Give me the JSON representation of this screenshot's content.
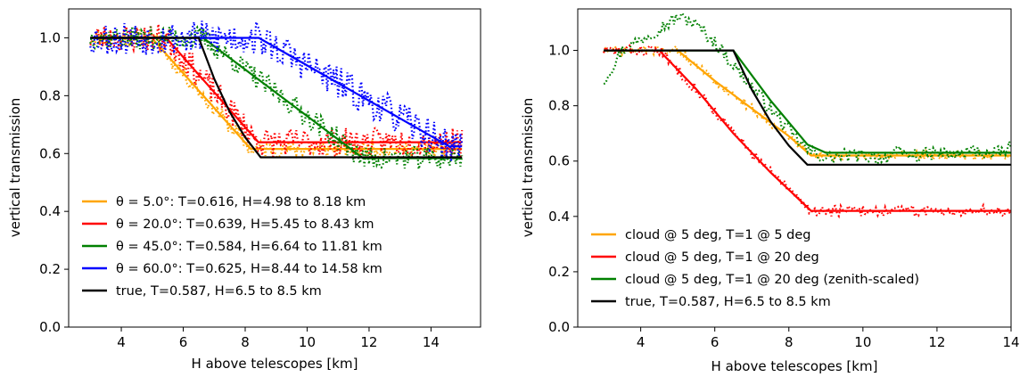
{
  "chart_data": [
    {
      "type": "line",
      "xlabel": "H above telescopes [km]",
      "ylabel": "vertical transmission",
      "xlim": [
        2.3,
        15.6
      ],
      "ylim": [
        0.0,
        1.1
      ],
      "xticks": [
        4,
        6,
        8,
        10,
        12,
        14
      ],
      "yticks": [
        0.0,
        0.2,
        0.4,
        0.6,
        0.8,
        1.0
      ],
      "xtick_labels": [
        "4",
        "6",
        "8",
        "10",
        "12",
        "14"
      ],
      "ytick_labels": [
        "0.0",
        "0.2",
        "0.4",
        "0.6",
        "0.8",
        "1.0"
      ],
      "legend_position": "lower-left",
      "series": [
        {
          "name": "θ = 5.0°: T=0.616, H=4.98 to 8.18 km",
          "color": "#ffa500",
          "fit": {
            "x": [
              3,
              4.98,
              8.18,
              15
            ],
            "y": [
              1.0,
              1.0,
              0.616,
              0.616
            ]
          },
          "noise": 0.015,
          "noise_seed": 11
        },
        {
          "name": "θ = 20.0°: T=0.639, H=5.45 to 8.43 km",
          "color": "#ff0000",
          "fit": {
            "x": [
              3,
              5.45,
              8.43,
              15
            ],
            "y": [
              1.0,
              1.0,
              0.639,
              0.639
            ]
          },
          "noise": 0.025,
          "noise_seed": 23
        },
        {
          "name": "θ = 45.0°: T=0.584, H=6.64 to 11.81 km",
          "color": "#008000",
          "fit": {
            "x": [
              3,
              6.64,
              11.81,
              15
            ],
            "y": [
              1.0,
              1.0,
              0.584,
              0.584
            ]
          },
          "noise": 0.02,
          "noise_seed": 37
        },
        {
          "name": "θ = 60.0°: T=0.625, H=8.44 to 14.58 km",
          "color": "#0000ff",
          "fit": {
            "x": [
              3,
              8.44,
              14.58,
              15
            ],
            "y": [
              1.0,
              1.0,
              0.625,
              0.625
            ]
          },
          "noise": 0.03,
          "noise_seed": 53
        },
        {
          "name": "true, T=0.587, H=6.5 to 8.5 km",
          "color": "#000000",
          "fit": {
            "x": [
              3,
              6.5,
              7.0,
              7.5,
              8.0,
              8.5,
              15
            ],
            "y": [
              1.0,
              1.0,
              0.858,
              0.744,
              0.656,
              0.587,
              0.587
            ]
          }
        }
      ]
    },
    {
      "type": "line",
      "xlabel": "H above telescopes [km]",
      "ylabel": "vertical transmission",
      "xlim": [
        2.3,
        14.0
      ],
      "ylim": [
        0.0,
        1.15
      ],
      "xticks": [
        4,
        6,
        8,
        10,
        12,
        14
      ],
      "yticks": [
        0.0,
        0.2,
        0.4,
        0.6,
        0.8,
        1.0
      ],
      "xtick_labels": [
        "4",
        "6",
        "8",
        "10",
        "12",
        "14"
      ],
      "ytick_labels": [
        "0.0",
        "0.2",
        "0.4",
        "0.6",
        "0.8",
        "1.0"
      ],
      "legend_position": "lower-left",
      "series": [
        {
          "name": "cloud @ 5 deg, T=1 @ 5 deg",
          "color": "#ffa500",
          "fit": {
            "x": [
              3,
              5.0,
              6.0,
              7.0,
              8.0,
              8.6,
              14
            ],
            "y": [
              1.0,
              1.0,
              0.89,
              0.79,
              0.69,
              0.62,
              0.62
            ]
          },
          "noise": 0.008,
          "noise_seed": 71
        },
        {
          "name": "cloud @ 5 deg, T=1 @ 20 deg",
          "color": "#ff0000",
          "fit": {
            "x": [
              3,
              4.5,
              5.5,
              6.5,
              7.5,
              8.6,
              14
            ],
            "y": [
              1.0,
              1.0,
              0.86,
              0.7,
              0.56,
              0.42,
              0.42
            ]
          },
          "noise": 0.01,
          "noise_seed": 83
        },
        {
          "name": "cloud @ 5 deg, T=1 @ 20 deg (zenith-scaled)",
          "color": "#008000",
          "fit": {
            "x": [
              3,
              6.5,
              7.5,
              8.5,
              9.0,
              14
            ],
            "y": [
              1.0,
              1.0,
              0.82,
              0.66,
              0.63,
              0.63
            ]
          },
          "points": {
            "x": [
              3.0,
              3.5,
              4.0,
              4.5,
              5.0,
              5.3,
              5.7,
              6.2,
              6.6,
              7.0,
              7.5,
              8.0,
              8.5,
              9.0,
              9.5,
              10,
              10.5,
              11,
              11.5,
              12,
              12.5,
              13,
              13.5,
              14
            ],
            "y": [
              0.89,
              1.0,
              1.04,
              1.08,
              1.12,
              1.11,
              1.07,
              1.0,
              0.93,
              0.87,
              0.79,
              0.71,
              0.64,
              0.61,
              0.62,
              0.62,
              0.61,
              0.63,
              0.62,
              0.63,
              0.62,
              0.64,
              0.62,
              0.65
            ]
          },
          "noise": 0.012,
          "noise_seed": 97
        },
        {
          "name": "true, T=0.587, H=6.5 to 8.5 km",
          "color": "#000000",
          "fit": {
            "x": [
              3,
              6.5,
              7.0,
              7.5,
              8.0,
              8.5,
              14
            ],
            "y": [
              1.0,
              1.0,
              0.858,
              0.744,
              0.656,
              0.587,
              0.587
            ]
          }
        }
      ]
    }
  ]
}
